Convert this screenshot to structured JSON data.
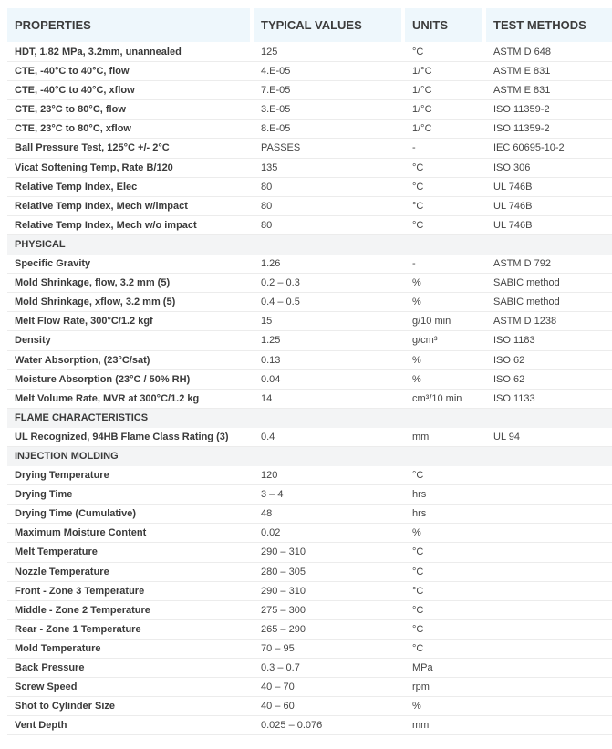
{
  "header": {
    "properties": "PROPERTIES",
    "typical_values": "TYPICAL VALUES",
    "units": "UNITS",
    "test_methods": "TEST METHODS"
  },
  "colors": {
    "header_bg": "#eef7fc",
    "section_bg": "#f3f4f5"
  },
  "groups": [
    {
      "section": null,
      "rows": [
        [
          "HDT, 1.82 MPa, 3.2mm, unannealed",
          "125",
          "°C",
          "ASTM D 648"
        ],
        [
          "CTE, -40°C to 40°C, flow",
          "4.E-05",
          "1/°C",
          "ASTM E 831"
        ],
        [
          "CTE, -40°C to 40°C, xflow",
          "7.E-05",
          "1/°C",
          "ASTM E 831"
        ],
        [
          "CTE, 23°C to 80°C, flow",
          "3.E-05",
          "1/°C",
          "ISO 11359-2"
        ],
        [
          "CTE, 23°C to 80°C, xflow",
          "8.E-05",
          "1/°C",
          "ISO 11359-2"
        ],
        [
          "Ball Pressure Test, 125°C +/- 2°C",
          "PASSES",
          "-",
          "IEC 60695-10-2"
        ],
        [
          "Vicat Softening Temp, Rate B/120",
          "135",
          "°C",
          "ISO 306"
        ],
        [
          "Relative Temp Index, Elec",
          "80",
          "°C",
          "UL 746B"
        ],
        [
          "Relative Temp Index, Mech w/impact",
          "80",
          "°C",
          "UL 746B"
        ],
        [
          "Relative Temp Index, Mech w/o impact",
          "80",
          "°C",
          "UL 746B"
        ]
      ]
    },
    {
      "section": "PHYSICAL",
      "rows": [
        [
          "Specific Gravity",
          "1.26",
          "-",
          "ASTM D 792"
        ],
        [
          "Mold Shrinkage, flow, 3.2 mm (5)",
          "0.2 – 0.3",
          "%",
          "SABIC method"
        ],
        [
          "Mold Shrinkage, xflow, 3.2 mm (5)",
          "0.4 – 0.5",
          "%",
          "SABIC method"
        ],
        [
          "Melt Flow Rate, 300°C/1.2 kgf",
          "15",
          "g/10 min",
          "ASTM D 1238"
        ],
        [
          "Density",
          "1.25",
          "g/cm³",
          "ISO 1183"
        ],
        [
          "Water Absorption, (23°C/sat)",
          "0.13",
          "%",
          "ISO 62"
        ],
        [
          "Moisture Absorption (23°C / 50% RH)",
          "0.04",
          "%",
          "ISO 62"
        ],
        [
          "Melt Volume Rate, MVR at 300°C/1.2 kg",
          "14",
          "cm³/10 min",
          "ISO 1133"
        ]
      ]
    },
    {
      "section": "FLAME CHARACTERISTICS",
      "rows": [
        [
          "UL Recognized, 94HB Flame Class Rating (3)",
          "0.4",
          "mm",
          "UL 94"
        ]
      ]
    },
    {
      "section": "INJECTION MOLDING",
      "rows": [
        [
          "Drying Temperature",
          "120",
          "°C",
          ""
        ],
        [
          "Drying Time",
          "3 – 4",
          "hrs",
          ""
        ],
        [
          "Drying Time (Cumulative)",
          "48",
          "hrs",
          ""
        ],
        [
          "Maximum Moisture Content",
          "0.02",
          "%",
          ""
        ],
        [
          "Melt Temperature",
          "290 – 310",
          "°C",
          ""
        ],
        [
          "Nozzle Temperature",
          "280 – 305",
          "°C",
          ""
        ],
        [
          "Front - Zone 3 Temperature",
          "290 – 310",
          "°C",
          ""
        ],
        [
          "Middle - Zone 2 Temperature",
          "275 – 300",
          "°C",
          ""
        ],
        [
          "Rear - Zone 1 Temperature",
          "265 – 290",
          "°C",
          ""
        ],
        [
          "Mold Temperature",
          "70 – 95",
          "°C",
          ""
        ],
        [
          "Back Pressure",
          "0.3 – 0.7",
          "MPa",
          ""
        ],
        [
          "Screw Speed",
          "40 – 70",
          "rpm",
          ""
        ],
        [
          "Shot to Cylinder Size",
          "40 – 60",
          "%",
          ""
        ],
        [
          "Vent Depth",
          "0.025 – 0.076",
          "mm",
          ""
        ]
      ]
    }
  ]
}
